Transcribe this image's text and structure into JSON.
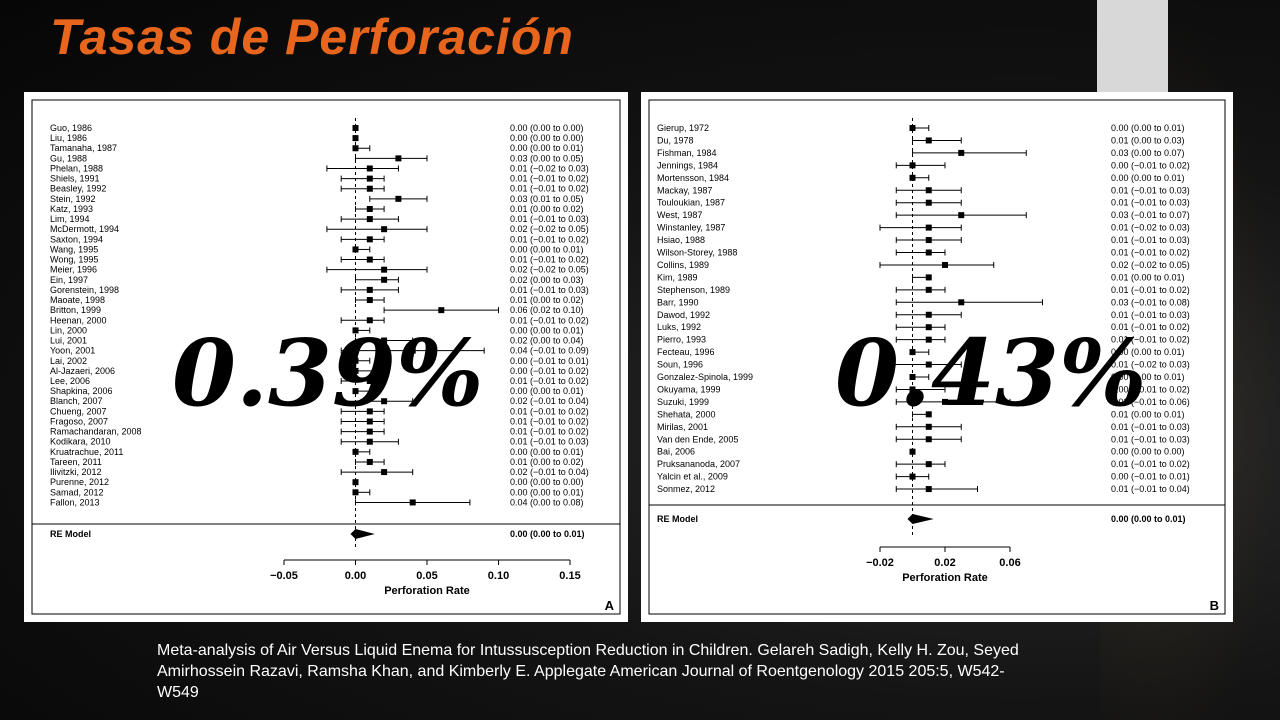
{
  "slide": {
    "title": "Tasas de Perforación",
    "pct_left": "0.39%",
    "pct_right": "0.43%",
    "citation": "Meta-analysis of Air Versus Liquid Enema for Intussusception Reduction in Children. Gelareh Sadigh, Kelly H. Zou, Seyed Amirhossein Razavi, Ramsha Khan, and Kimberly E. Applegate American Journal of Roentgenology 2015 205:5, W542-W549",
    "colors": {
      "title": "#e8651d",
      "text": "#ffffff",
      "panel": "#ffffff",
      "marks": "#000000"
    }
  },
  "chart_data": [
    {
      "type": "forest",
      "panel_label": "A",
      "xlabel": "Perforation Rate",
      "xlim": [
        -0.05,
        0.15
      ],
      "xticks": [
        -0.05,
        0.0,
        0.05,
        0.1,
        0.15
      ],
      "xtick_labels": [
        "−0.05",
        "0.00",
        "0.05",
        "0.10",
        "0.15"
      ],
      "reference_line": 0,
      "studies": [
        {
          "name": "Guo, 1986",
          "est": 0.0,
          "lo": 0.0,
          "hi": 0.0,
          "ci_text": "0.00 (0.00 to 0.00)"
        },
        {
          "name": "Liu, 1986",
          "est": 0.0,
          "lo": 0.0,
          "hi": 0.0,
          "ci_text": "0.00 (0.00 to 0.00)"
        },
        {
          "name": "Tamanaha, 1987",
          "est": 0.0,
          "lo": 0.0,
          "hi": 0.01,
          "ci_text": "0.00 (0.00 to 0.01)"
        },
        {
          "name": "Gu, 1988",
          "est": 0.03,
          "lo": 0.0,
          "hi": 0.05,
          "ci_text": "0.03 (0.00 to 0.05)"
        },
        {
          "name": "Phelan, 1988",
          "est": 0.01,
          "lo": -0.02,
          "hi": 0.03,
          "ci_text": "0.01 (−0.02 to 0.03)"
        },
        {
          "name": "Shiels, 1991",
          "est": 0.01,
          "lo": -0.01,
          "hi": 0.02,
          "ci_text": "0.01 (−0.01 to 0.02)"
        },
        {
          "name": "Beasley, 1992",
          "est": 0.01,
          "lo": -0.01,
          "hi": 0.02,
          "ci_text": "0.01 (−0.01 to 0.02)"
        },
        {
          "name": "Stein, 1992",
          "est": 0.03,
          "lo": 0.01,
          "hi": 0.05,
          "ci_text": "0.03 (0.01 to 0.05)"
        },
        {
          "name": "Katz, 1993",
          "est": 0.01,
          "lo": 0.0,
          "hi": 0.02,
          "ci_text": "0.01 (0.00 to 0.02)"
        },
        {
          "name": "Lim, 1994",
          "est": 0.01,
          "lo": -0.01,
          "hi": 0.03,
          "ci_text": "0.01 (−0.01 to 0.03)"
        },
        {
          "name": "McDermott, 1994",
          "est": 0.02,
          "lo": -0.02,
          "hi": 0.05,
          "ci_text": "0.02 (−0.02 to 0.05)"
        },
        {
          "name": "Saxton, 1994",
          "est": 0.01,
          "lo": -0.01,
          "hi": 0.02,
          "ci_text": "0.01 (−0.01 to 0.02)"
        },
        {
          "name": "Wang, 1995",
          "est": 0.0,
          "lo": 0.0,
          "hi": 0.01,
          "ci_text": "0.00 (0.00 to 0.01)"
        },
        {
          "name": "Wong, 1995",
          "est": 0.01,
          "lo": -0.01,
          "hi": 0.02,
          "ci_text": "0.01 (−0.01 to 0.02)"
        },
        {
          "name": "Meier, 1996",
          "est": 0.02,
          "lo": -0.02,
          "hi": 0.05,
          "ci_text": "0.02 (−0.02 to 0.05)"
        },
        {
          "name": "Ein, 1997",
          "est": 0.02,
          "lo": 0.0,
          "hi": 0.03,
          "ci_text": "0.02 (0.00 to 0.03)"
        },
        {
          "name": "Gorenstein, 1998",
          "est": 0.01,
          "lo": -0.01,
          "hi": 0.03,
          "ci_text": "0.01 (−0.01 to 0.03)"
        },
        {
          "name": "Maoate, 1998",
          "est": 0.01,
          "lo": 0.0,
          "hi": 0.02,
          "ci_text": "0.01 (0.00 to 0.02)"
        },
        {
          "name": "Britton, 1999",
          "est": 0.06,
          "lo": 0.02,
          "hi": 0.1,
          "ci_text": "0.06 (0.02 to 0.10)"
        },
        {
          "name": "Heenan, 2000",
          "est": 0.01,
          "lo": -0.01,
          "hi": 0.02,
          "ci_text": "0.01 (−0.01 to 0.02)"
        },
        {
          "name": "Lin, 2000",
          "est": 0.0,
          "lo": 0.0,
          "hi": 0.01,
          "ci_text": "0.00 (0.00 to 0.01)"
        },
        {
          "name": "Lui, 2001",
          "est": 0.02,
          "lo": 0.0,
          "hi": 0.04,
          "ci_text": "0.02 (0.00 to 0.04)"
        },
        {
          "name": "Yoon, 2001",
          "est": 0.04,
          "lo": -0.01,
          "hi": 0.09,
          "ci_text": "0.04 (−0.01 to 0.09)"
        },
        {
          "name": "Lai, 2002",
          "est": 0.0,
          "lo": -0.01,
          "hi": 0.01,
          "ci_text": "0.00 (−0.01 to 0.01)"
        },
        {
          "name": "Al-Jazaeri, 2006",
          "est": 0.0,
          "lo": -0.01,
          "hi": 0.02,
          "ci_text": "0.00 (−0.01 to 0.02)"
        },
        {
          "name": "Lee, 2006",
          "est": 0.01,
          "lo": -0.01,
          "hi": 0.02,
          "ci_text": "0.01 (−0.01 to 0.02)"
        },
        {
          "name": "Shapkina, 2006",
          "est": 0.0,
          "lo": 0.0,
          "hi": 0.01,
          "ci_text": "0.00 (0.00 to 0.01)"
        },
        {
          "name": "Blanch, 2007",
          "est": 0.02,
          "lo": -0.01,
          "hi": 0.04,
          "ci_text": "0.02 (−0.01 to 0.04)"
        },
        {
          "name": "Chueng, 2007",
          "est": 0.01,
          "lo": -0.01,
          "hi": 0.02,
          "ci_text": "0.01 (−0.01 to 0.02)"
        },
        {
          "name": "Fragoso, 2007",
          "est": 0.01,
          "lo": -0.01,
          "hi": 0.02,
          "ci_text": "0.01 (−0.01 to 0.02)"
        },
        {
          "name": "Ramachandaran, 2008",
          "est": 0.01,
          "lo": -0.01,
          "hi": 0.02,
          "ci_text": "0.01 (−0.01 to 0.02)"
        },
        {
          "name": "Kodikara, 2010",
          "est": 0.01,
          "lo": -0.01,
          "hi": 0.03,
          "ci_text": "0.01 (−0.01 to 0.03)"
        },
        {
          "name": "Kruatrachue, 2011",
          "est": 0.0,
          "lo": 0.0,
          "hi": 0.01,
          "ci_text": "0.00 (0.00 to 0.01)"
        },
        {
          "name": "Tareen, 2011",
          "est": 0.01,
          "lo": 0.0,
          "hi": 0.02,
          "ci_text": "0.01 (0.00 to 0.02)"
        },
        {
          "name": "Ilivitzki, 2012",
          "est": 0.02,
          "lo": -0.01,
          "hi": 0.04,
          "ci_text": "0.02 (−0.01 to 0.04)"
        },
        {
          "name": "Purenne, 2012",
          "est": 0.0,
          "lo": 0.0,
          "hi": 0.0,
          "ci_text": "0.00 (0.00 to 0.00)"
        },
        {
          "name": "Samad, 2012",
          "est": 0.0,
          "lo": 0.0,
          "hi": 0.01,
          "ci_text": "0.00 (0.00 to 0.01)"
        },
        {
          "name": "Fallon, 2013",
          "est": 0.04,
          "lo": 0.0,
          "hi": 0.08,
          "ci_text": "0.04 (0.00 to 0.08)"
        }
      ],
      "summary": {
        "name": "RE Model",
        "est": 0.0,
        "lo": 0.0,
        "hi": 0.01,
        "ci_text": "0.00 (0.00 to 0.01)"
      }
    },
    {
      "type": "forest",
      "panel_label": "B",
      "xlabel": "Perforation Rate",
      "xlim": [
        -0.02,
        0.06
      ],
      "xticks": [
        -0.02,
        0.02,
        0.06
      ],
      "xtick_labels": [
        "−0.02",
        "0.02",
        "0.06"
      ],
      "reference_line": 0,
      "studies": [
        {
          "name": "Gierup, 1972",
          "est": 0.0,
          "lo": 0.0,
          "hi": 0.01,
          "ci_text": "0.00 (0.00 to 0.01)"
        },
        {
          "name": "Du, 1978",
          "est": 0.01,
          "lo": 0.0,
          "hi": 0.03,
          "ci_text": "0.01 (0.00 to 0.03)"
        },
        {
          "name": "Fishman, 1984",
          "est": 0.03,
          "lo": 0.0,
          "hi": 0.07,
          "ci_text": "0.03 (0.00 to 0.07)"
        },
        {
          "name": "Jennings, 1984",
          "est": 0.0,
          "lo": -0.01,
          "hi": 0.02,
          "ci_text": "0.00 (−0.01 to 0.02)"
        },
        {
          "name": "Mortensson, 1984",
          "est": 0.0,
          "lo": 0.0,
          "hi": 0.01,
          "ci_text": "0.00 (0.00 to 0.01)"
        },
        {
          "name": "Mackay, 1987",
          "est": 0.01,
          "lo": -0.01,
          "hi": 0.03,
          "ci_text": "0.01 (−0.01 to 0.03)"
        },
        {
          "name": "Touloukian, 1987",
          "est": 0.01,
          "lo": -0.01,
          "hi": 0.03,
          "ci_text": "0.01 (−0.01 to 0.03)"
        },
        {
          "name": "West, 1987",
          "est": 0.03,
          "lo": -0.01,
          "hi": 0.07,
          "ci_text": "0.03 (−0.01 to 0.07)"
        },
        {
          "name": "Winstanley, 1987",
          "est": 0.01,
          "lo": -0.02,
          "hi": 0.03,
          "ci_text": "0.01 (−0.02 to 0.03)"
        },
        {
          "name": "Hsiao, 1988",
          "est": 0.01,
          "lo": -0.01,
          "hi": 0.03,
          "ci_text": "0.01 (−0.01 to 0.03)"
        },
        {
          "name": "Wilson-Storey, 1988",
          "est": 0.01,
          "lo": -0.01,
          "hi": 0.02,
          "ci_text": "0.01 (−0.01 to 0.02)"
        },
        {
          "name": "Collins, 1989",
          "est": 0.02,
          "lo": -0.02,
          "hi": 0.05,
          "ci_text": "0.02 (−0.02 to 0.05)"
        },
        {
          "name": "Kim, 1989",
          "est": 0.01,
          "lo": 0.0,
          "hi": 0.01,
          "ci_text": "0.01 (0.00 to 0.01)"
        },
        {
          "name": "Stephenson, 1989",
          "est": 0.01,
          "lo": -0.01,
          "hi": 0.02,
          "ci_text": "0.01 (−0.01 to 0.02)"
        },
        {
          "name": "Barr, 1990",
          "est": 0.03,
          "lo": -0.01,
          "hi": 0.08,
          "ci_text": "0.03 (−0.01 to 0.08)"
        },
        {
          "name": "Dawod, 1992",
          "est": 0.01,
          "lo": -0.01,
          "hi": 0.03,
          "ci_text": "0.01 (−0.01 to 0.03)"
        },
        {
          "name": "Luks, 1992",
          "est": 0.01,
          "lo": -0.01,
          "hi": 0.02,
          "ci_text": "0.01 (−0.01 to 0.02)"
        },
        {
          "name": "Pierro, 1993",
          "est": 0.01,
          "lo": -0.01,
          "hi": 0.02,
          "ci_text": "0.01 (−0.01 to 0.02)"
        },
        {
          "name": "Fecteau, 1996",
          "est": 0.0,
          "lo": 0.0,
          "hi": 0.01,
          "ci_text": "0.00 (0.00 to 0.01)"
        },
        {
          "name": "Soun, 1996",
          "est": 0.01,
          "lo": -0.02,
          "hi": 0.03,
          "ci_text": "0.01 (−0.02 to 0.03)"
        },
        {
          "name": "Gonzalez-Spinola, 1999",
          "est": 0.0,
          "lo": 0.0,
          "hi": 0.01,
          "ci_text": "0.00 (0.00 to 0.01)"
        },
        {
          "name": "Okuyama, 1999",
          "est": 0.0,
          "lo": -0.01,
          "hi": 0.02,
          "ci_text": "0.00 (−0.01 to 0.02)"
        },
        {
          "name": "Suzuki, 1999",
          "est": 0.02,
          "lo": -0.01,
          "hi": 0.06,
          "ci_text": "0.02 (−0.01 to 0.06)"
        },
        {
          "name": "Shehata, 2000",
          "est": 0.01,
          "lo": 0.0,
          "hi": 0.01,
          "ci_text": "0.01 (0.00 to 0.01)"
        },
        {
          "name": "Mirilas, 2001",
          "est": 0.01,
          "lo": -0.01,
          "hi": 0.03,
          "ci_text": "0.01 (−0.01 to 0.03)"
        },
        {
          "name": "Van den Ende, 2005",
          "est": 0.01,
          "lo": -0.01,
          "hi": 0.03,
          "ci_text": "0.01 (−0.01 to 0.03)"
        },
        {
          "name": "Bai, 2006",
          "est": 0.0,
          "lo": 0.0,
          "hi": 0.0,
          "ci_text": "0.00 (0.00 to 0.00)"
        },
        {
          "name": "Pruksananoda, 2007",
          "est": 0.01,
          "lo": -0.01,
          "hi": 0.02,
          "ci_text": "0.01 (−0.01 to 0.02)"
        },
        {
          "name": "Yalcin et al., 2009",
          "est": 0.0,
          "lo": -0.01,
          "hi": 0.01,
          "ci_text": "0.00 (−0.01 to 0.01)"
        },
        {
          "name": "Sonmez, 2012",
          "est": 0.01,
          "lo": -0.01,
          "hi": 0.04,
          "ci_text": "0.01 (−0.01 to 0.04)"
        }
      ],
      "summary": {
        "name": "RE Model",
        "est": 0.0,
        "lo": 0.0,
        "hi": 0.01,
        "ci_text": "0.00 (0.00 to 0.01)"
      }
    }
  ]
}
